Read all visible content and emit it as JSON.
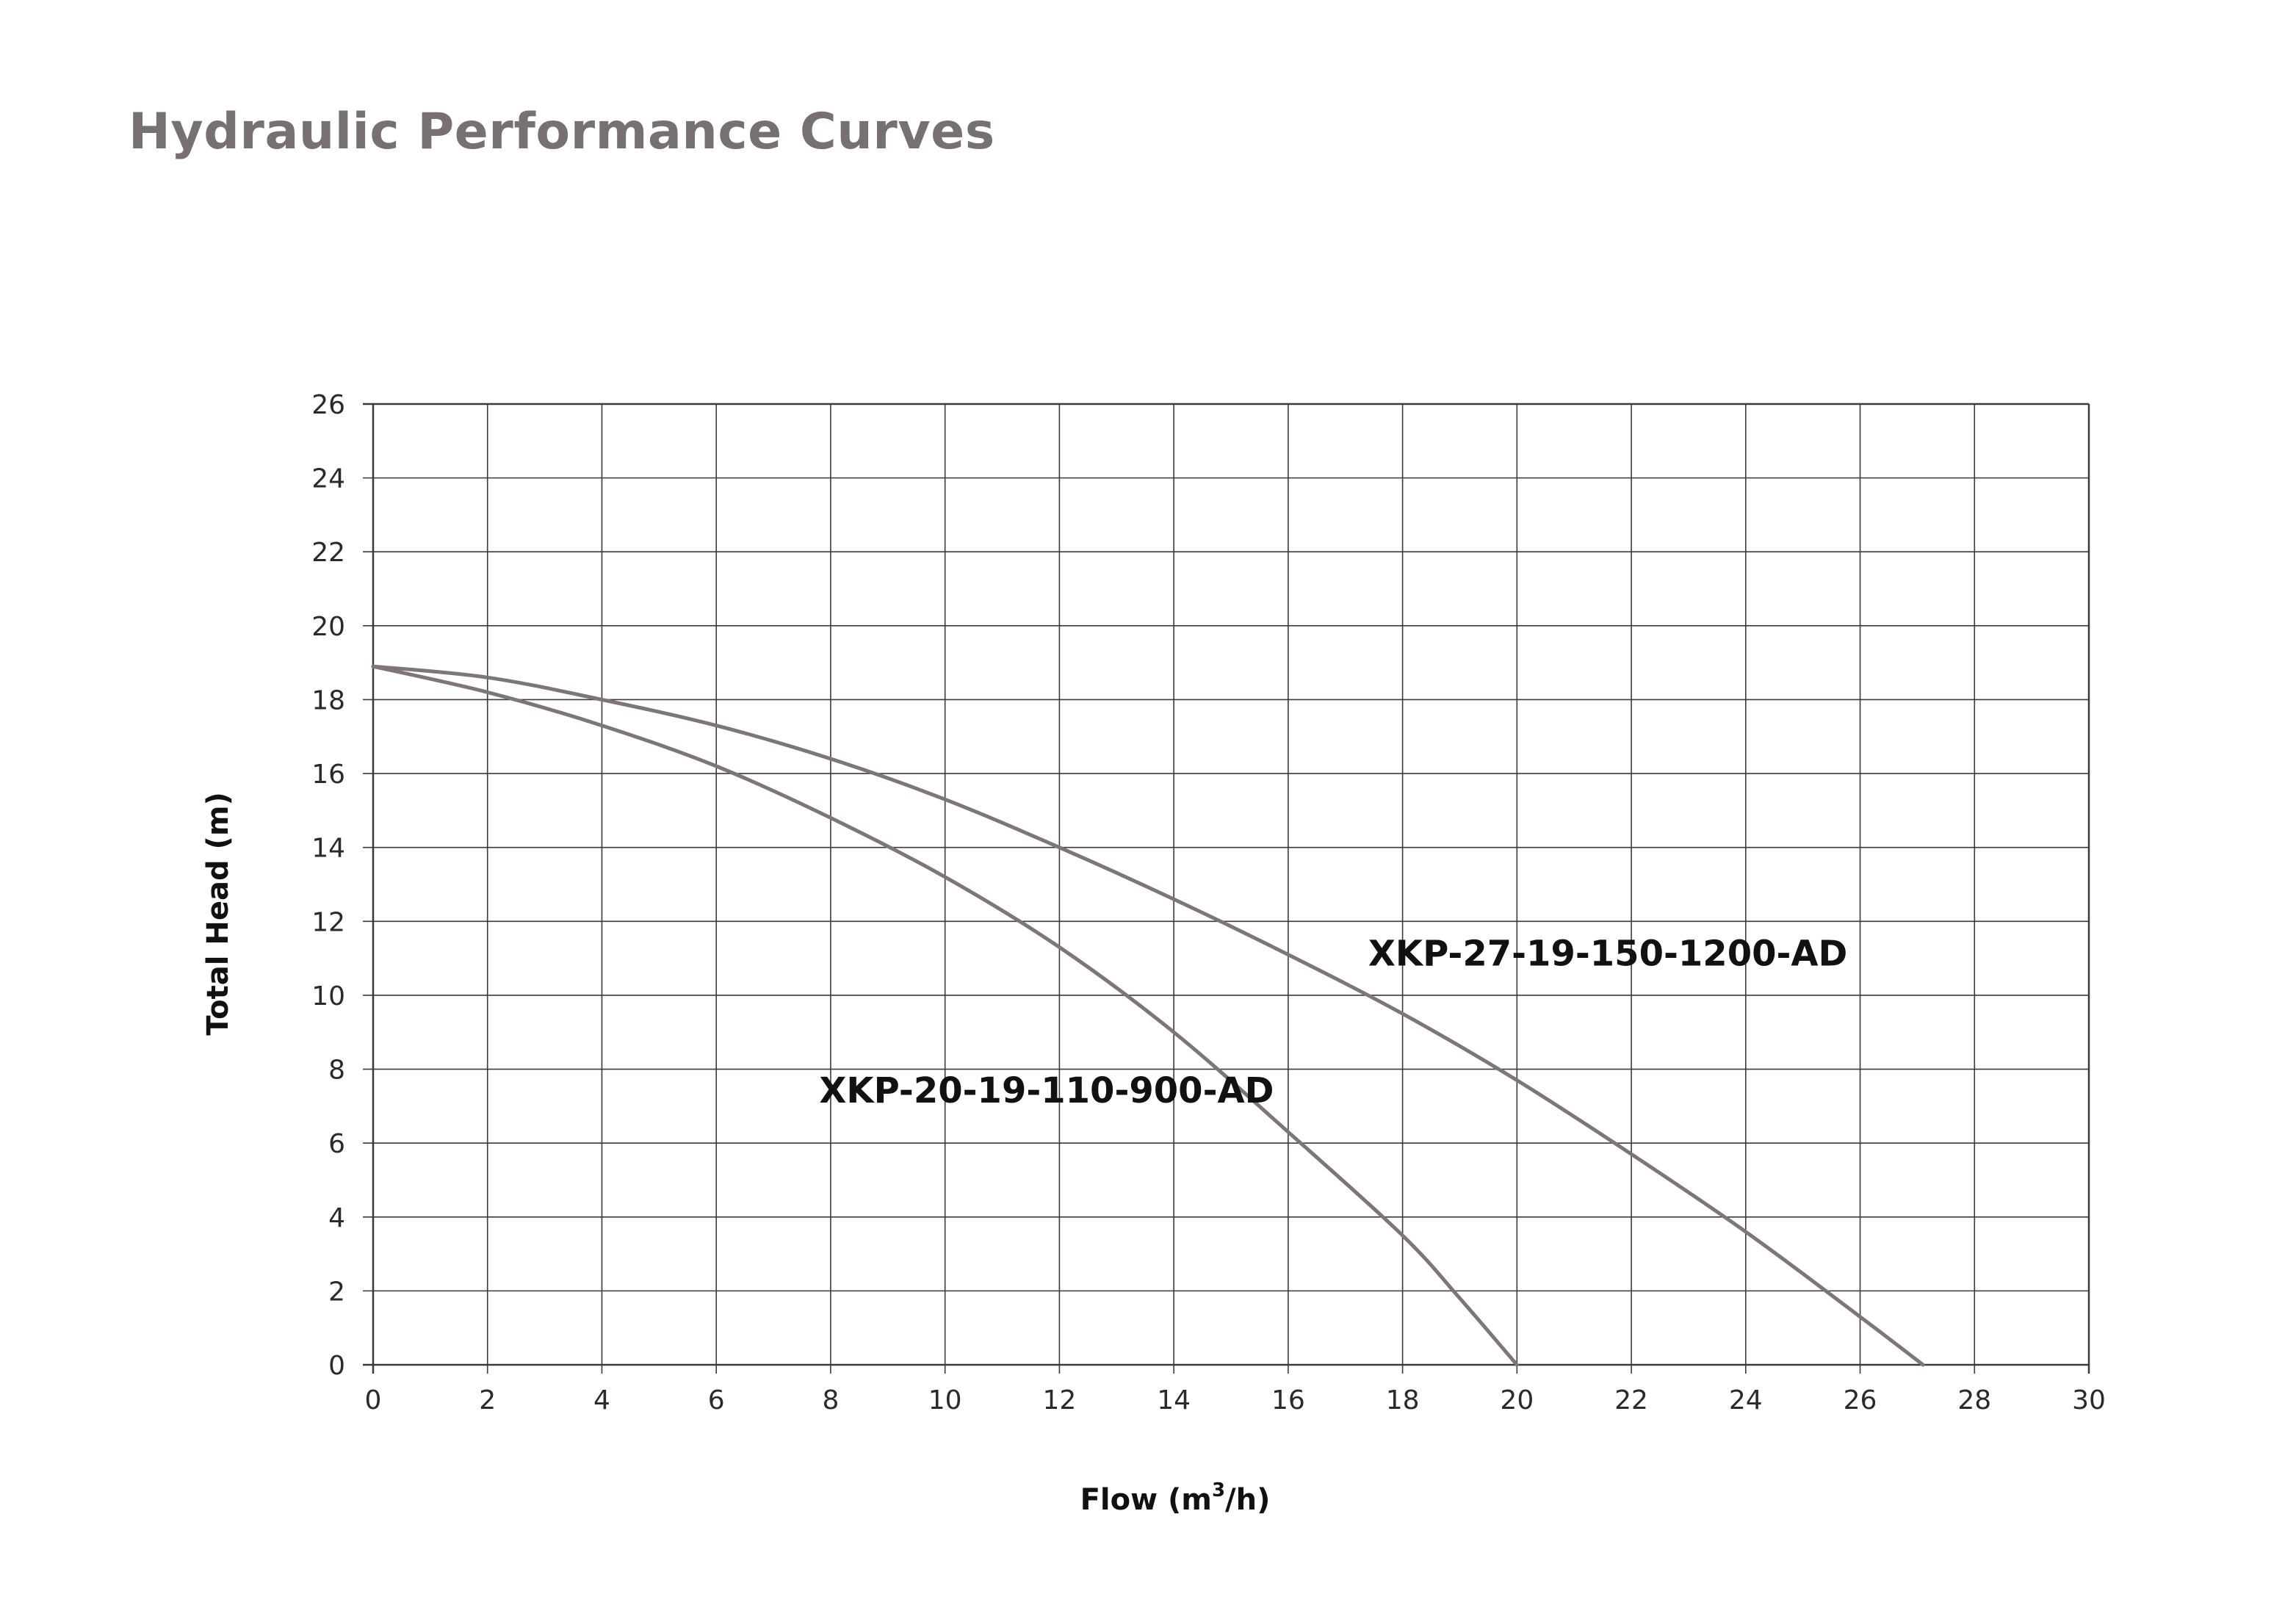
{
  "header": {
    "title": "Hydraulic Performance Curves"
  },
  "colors": {
    "curve": "#7d7675",
    "grid": "#3a3a3a",
    "text": "#111111",
    "title": "#767170"
  },
  "chart_data": {
    "type": "line",
    "title": "",
    "xlabel": "Flow (m",
    "xlabel_sup": "3",
    "xlabel_end": "/h)",
    "ylabel": "Total Head (m)",
    "xlim": [
      0,
      30
    ],
    "ylim": [
      0,
      26
    ],
    "xticks": [
      0,
      2,
      4,
      6,
      8,
      10,
      12,
      14,
      16,
      18,
      20,
      22,
      24,
      26,
      28,
      30
    ],
    "yticks": [
      0,
      2,
      4,
      6,
      8,
      10,
      12,
      14,
      16,
      18,
      20,
      22,
      24,
      26
    ],
    "grid": true,
    "series": [
      {
        "name": "XKP-20-19-110-900-AD",
        "label_anchor": [
          7.8,
          7.1
        ],
        "x": [
          0,
          2,
          4,
          6,
          8,
          10,
          12,
          14,
          16,
          18,
          19,
          20
        ],
        "y": [
          18.9,
          18.2,
          17.3,
          16.2,
          14.8,
          13.2,
          11.3,
          9.0,
          6.3,
          3.5,
          1.8,
          0
        ]
      },
      {
        "name": "XKP-27-19-150-1200-AD",
        "label_anchor": [
          17.4,
          10.8
        ],
        "x": [
          0,
          2,
          4,
          6,
          8,
          10,
          12,
          14,
          16,
          18,
          20,
          22,
          24,
          26,
          27.1
        ],
        "y": [
          18.9,
          18.6,
          18.0,
          17.3,
          16.4,
          15.3,
          14.0,
          12.6,
          11.1,
          9.5,
          7.7,
          5.7,
          3.6,
          1.3,
          0
        ]
      }
    ]
  }
}
